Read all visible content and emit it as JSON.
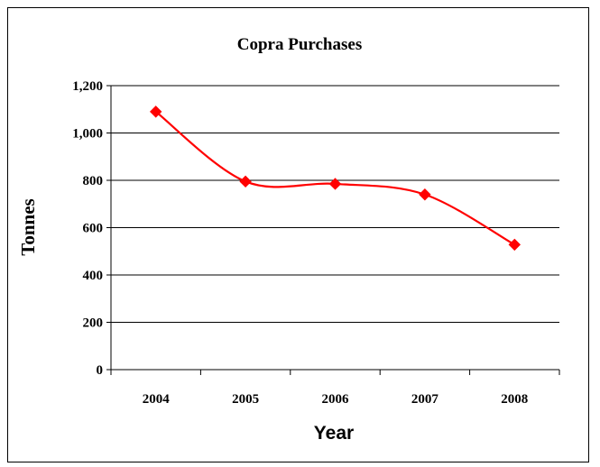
{
  "chart_data": {
    "type": "line",
    "title": "Copra Purchases",
    "xlabel": "Year",
    "ylabel": "Tonnes",
    "categories": [
      "2004",
      "2005",
      "2006",
      "2007",
      "2008"
    ],
    "series": [
      {
        "values": [
          1090,
          795,
          785,
          740,
          528
        ],
        "color": "#ff0000"
      }
    ],
    "ylim": [
      0,
      1200
    ],
    "yticks": [
      0,
      200,
      400,
      600,
      800,
      1000,
      1200
    ],
    "ytick_labels": [
      "0",
      "200",
      "400",
      "600",
      "800",
      "1,000",
      "1,200"
    ],
    "grid": true,
    "legend": "none",
    "marker": "diamond",
    "smooth": true
  }
}
